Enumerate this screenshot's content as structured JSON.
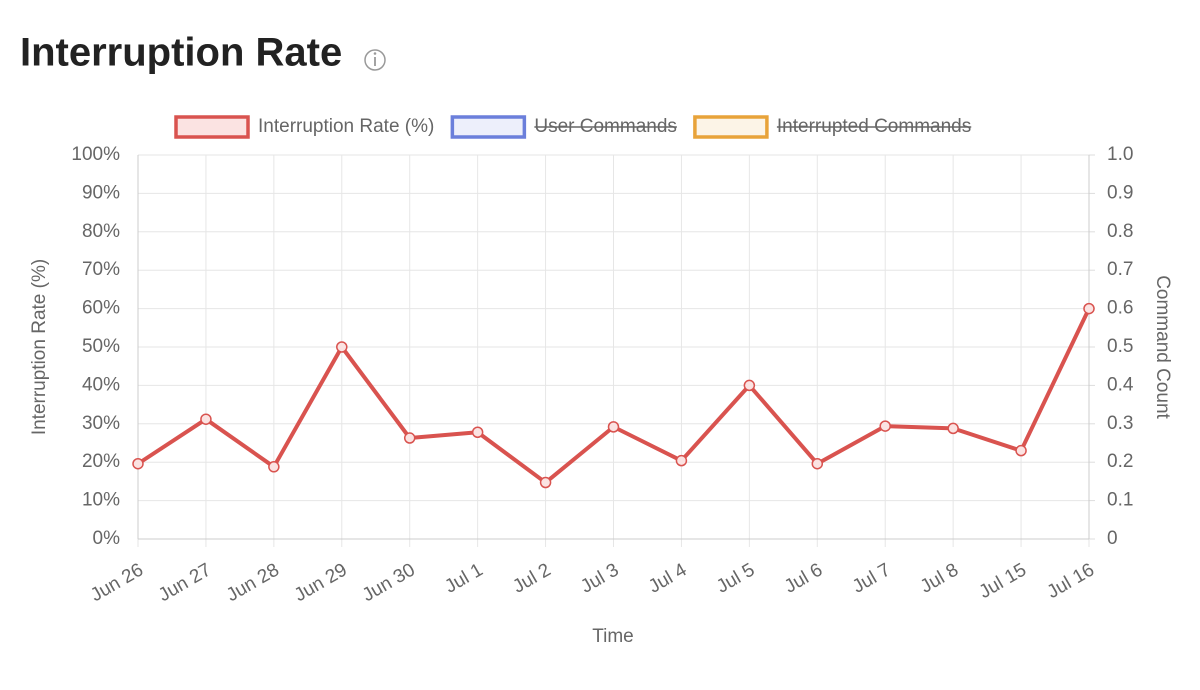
{
  "chart_data": {
    "type": "line",
    "title": "Interruption Rate",
    "x_label": "Time",
    "y_label": "Interruption Rate (%)",
    "y2_label": "Command Count",
    "categories": [
      "Jun 26",
      "Jun 27",
      "Jun 28",
      "Jun 29",
      "Jun 30",
      "Jul 1",
      "Jul 2",
      "Jul 3",
      "Jul 4",
      "Jul 5",
      "Jul 6",
      "Jul 7",
      "Jul 8",
      "Jul 15",
      "Jul 16"
    ],
    "series": [
      {
        "name": "Interruption Rate (%)",
        "color": "#d9534f",
        "values": [
          19.6,
          31.2,
          18.8,
          50,
          26.3,
          27.8,
          14.7,
          29.2,
          20.4,
          40,
          19.6,
          29.4,
          28.8,
          23,
          60
        ]
      },
      {
        "name": "User Commands",
        "color": "#6b7fdb",
        "hidden": true,
        "axis": "y2"
      },
      {
        "name": "Interrupted Commands",
        "color": "#e8a33a",
        "hidden": true,
        "axis": "y2"
      }
    ],
    "ylim": [
      0,
      100
    ],
    "yticks": [
      {
        "value": 0,
        "label": "0%"
      },
      {
        "value": 10,
        "label": "10%"
      },
      {
        "value": 20,
        "label": "20%"
      },
      {
        "value": 30,
        "label": "30%"
      },
      {
        "value": 40,
        "label": "40%"
      },
      {
        "value": 50,
        "label": "50%"
      },
      {
        "value": 60,
        "label": "60%"
      },
      {
        "value": 70,
        "label": "70%"
      },
      {
        "value": 80,
        "label": "80%"
      },
      {
        "value": 90,
        "label": "90%"
      },
      {
        "value": 100,
        "label": "100%"
      }
    ],
    "y2lim": [
      0,
      1
    ],
    "y2ticks": [
      0,
      0.1,
      0.2,
      0.3,
      0.4,
      0.5,
      0.6,
      0.7,
      0.8,
      0.9,
      {
        "value": 1,
        "label": "1.0"
      }
    ],
    "grid": true,
    "legend": "top"
  }
}
